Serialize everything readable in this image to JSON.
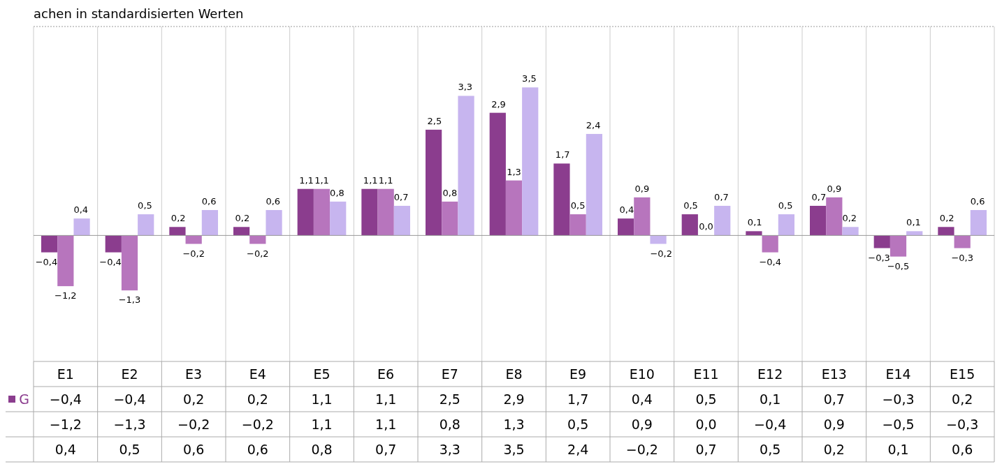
{
  "chart_data": {
    "type": "bar",
    "title": "achen in standardisierten Werten",
    "categories": [
      "E1",
      "E2",
      "E3",
      "E4",
      "E5",
      "E6",
      "E7",
      "E8",
      "E9",
      "E10",
      "E11",
      "E12",
      "E13",
      "E14",
      "E15"
    ],
    "series": [
      {
        "name": "G",
        "color": "#8b3d8e",
        "values": [
          -0.4,
          -0.4,
          0.2,
          0.2,
          1.1,
          1.1,
          2.5,
          2.9,
          1.7,
          0.4,
          0.5,
          0.1,
          0.7,
          -0.3,
          0.2
        ],
        "value_labels": [
          "−0,4",
          "−0,4",
          "0,2",
          "0,2",
          "1,1",
          "1,1",
          "2,5",
          "2,9",
          "1,7",
          "0,4",
          "0,5",
          "0,1",
          "0,7",
          "−0,3",
          "0,2"
        ]
      },
      {
        "color": "#b775bd",
        "values": [
          -1.2,
          -1.3,
          -0.2,
          -0.2,
          1.1,
          1.1,
          0.8,
          1.3,
          0.5,
          0.9,
          0.0,
          -0.4,
          0.9,
          -0.5,
          -0.3
        ],
        "value_labels": [
          "−1,2",
          "−1,3",
          "−0,2",
          "−0,2",
          "1,1",
          "1,1",
          "0,8",
          "1,3",
          "0,5",
          "0,9",
          "0,0",
          "−0,4",
          "0,9",
          "−0,5",
          "−0,3"
        ]
      },
      {
        "color": "#c7b5ef",
        "values": [
          0.4,
          0.5,
          0.6,
          0.6,
          0.8,
          0.7,
          3.3,
          3.5,
          2.4,
          -0.2,
          0.7,
          0.5,
          0.2,
          0.1,
          0.6
        ],
        "value_labels": [
          "0,4",
          "0,5",
          "0,6",
          "0,6",
          "0,8",
          "0,7",
          "3,3",
          "3,5",
          "2,4",
          "−0,2",
          "0,7",
          "0,5",
          "0,2",
          "0,1",
          "0,6"
        ]
      }
    ],
    "tick_labels": "x",
    "grid": "x"
  }
}
